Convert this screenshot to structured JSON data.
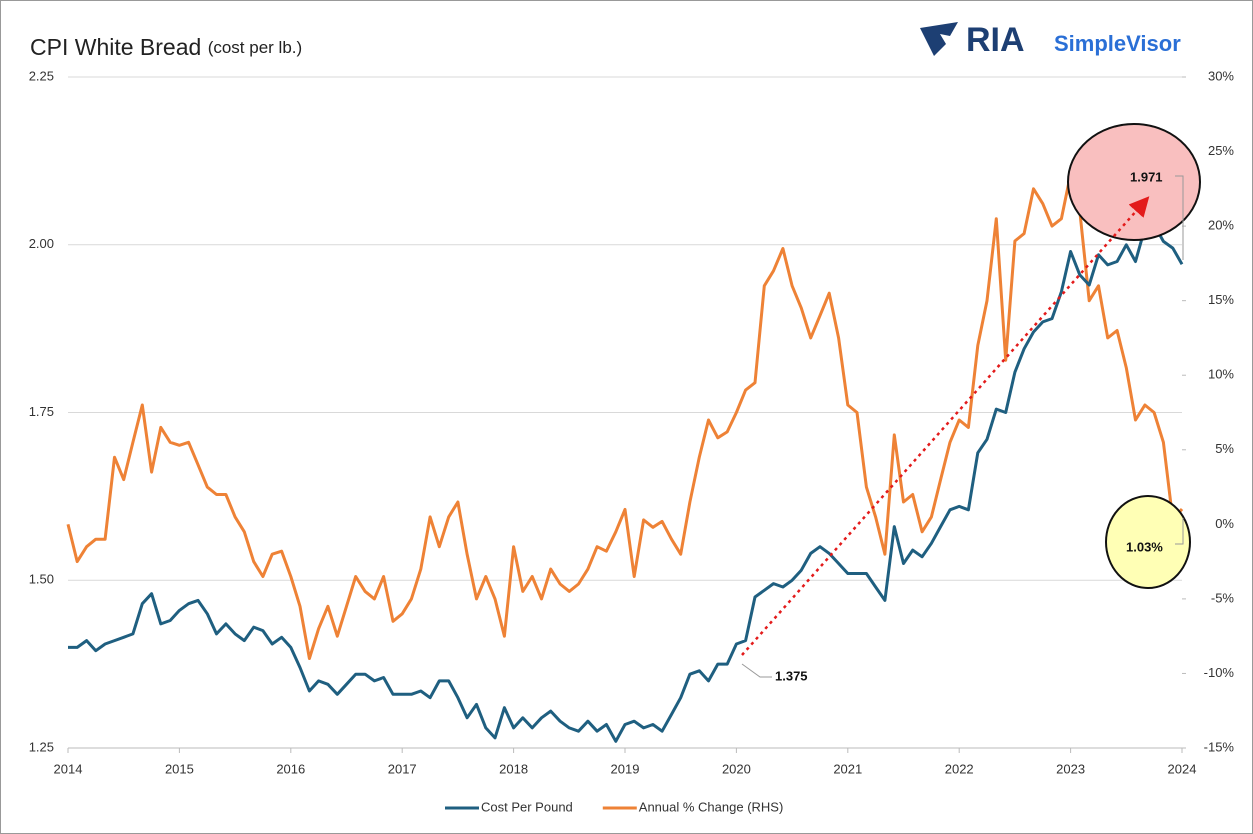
{
  "chart_data": {
    "type": "line",
    "title": "CPI White Bread",
    "subtitle": "(cost per lb.)",
    "brand": {
      "mark": "RIA",
      "name": "SimpleVisor"
    },
    "x": [
      2014,
      2014.083,
      2014.167,
      2014.25,
      2014.333,
      2014.417,
      2014.5,
      2014.583,
      2014.667,
      2014.75,
      2014.833,
      2014.917,
      2015,
      2015.083,
      2015.167,
      2015.25,
      2015.333,
      2015.417,
      2015.5,
      2015.583,
      2015.667,
      2015.75,
      2015.833,
      2015.917,
      2016,
      2016.083,
      2016.167,
      2016.25,
      2016.333,
      2016.417,
      2016.5,
      2016.583,
      2016.667,
      2016.75,
      2016.833,
      2016.917,
      2017,
      2017.083,
      2017.167,
      2017.25,
      2017.333,
      2017.417,
      2017.5,
      2017.583,
      2017.667,
      2017.75,
      2017.833,
      2017.917,
      2018,
      2018.083,
      2018.167,
      2018.25,
      2018.333,
      2018.417,
      2018.5,
      2018.583,
      2018.667,
      2018.75,
      2018.833,
      2018.917,
      2019,
      2019.083,
      2019.167,
      2019.25,
      2019.333,
      2019.417,
      2019.5,
      2019.583,
      2019.667,
      2019.75,
      2019.833,
      2019.917,
      2020,
      2020.083,
      2020.167,
      2020.25,
      2020.333,
      2020.417,
      2020.5,
      2020.583,
      2020.667,
      2020.75,
      2020.833,
      2020.917,
      2021,
      2021.083,
      2021.167,
      2021.25,
      2021.333,
      2021.417,
      2021.5,
      2021.583,
      2021.667,
      2021.75,
      2021.833,
      2021.917,
      2022,
      2022.083,
      2022.167,
      2022.25,
      2022.333,
      2022.417,
      2022.5,
      2022.583,
      2022.667,
      2022.75,
      2022.833,
      2022.917,
      2023,
      2023.083,
      2023.167,
      2023.25,
      2023.333,
      2023.417,
      2023.5,
      2023.583,
      2023.667,
      2023.75,
      2023.833,
      2023.917,
      2024
    ],
    "series": [
      {
        "name": "Cost Per Pound",
        "color": "#1f5f80",
        "values": [
          1.4,
          1.4,
          1.41,
          1.395,
          1.405,
          1.41,
          1.415,
          1.42,
          1.465,
          1.48,
          1.435,
          1.44,
          1.455,
          1.465,
          1.47,
          1.45,
          1.42,
          1.435,
          1.42,
          1.41,
          1.43,
          1.425,
          1.405,
          1.415,
          1.4,
          1.37,
          1.335,
          1.35,
          1.345,
          1.33,
          1.345,
          1.36,
          1.36,
          1.35,
          1.355,
          1.33,
          1.33,
          1.33,
          1.335,
          1.325,
          1.35,
          1.35,
          1.325,
          1.295,
          1.315,
          1.28,
          1.265,
          1.31,
          1.28,
          1.295,
          1.28,
          1.295,
          1.305,
          1.29,
          1.28,
          1.275,
          1.29,
          1.275,
          1.285,
          1.26,
          1.285,
          1.29,
          1.28,
          1.285,
          1.275,
          1.3,
          1.325,
          1.36,
          1.365,
          1.35,
          1.375,
          1.375,
          1.405,
          1.41,
          1.475,
          1.485,
          1.495,
          1.49,
          1.5,
          1.515,
          1.54,
          1.55,
          1.54,
          1.525,
          1.51,
          1.51,
          1.51,
          1.49,
          1.47,
          1.58,
          1.525,
          1.545,
          1.535,
          1.555,
          1.58,
          1.605,
          1.61,
          1.605,
          1.69,
          1.71,
          1.755,
          1.75,
          1.81,
          1.845,
          1.87,
          1.885,
          1.89,
          1.93,
          1.99,
          1.955,
          1.94,
          1.985,
          1.97,
          1.975,
          2.0,
          1.975,
          2.025,
          2.03,
          2.005,
          1.995,
          1.971
        ]
      },
      {
        "name": "Annual % Change (RHS)",
        "color": "#ee8236",
        "axis": "y2",
        "values": [
          0,
          -2.5,
          -1.5,
          -1,
          -1,
          4.5,
          3,
          5.5,
          8,
          3.5,
          6.5,
          5.5,
          5.3,
          5.5,
          4,
          2.5,
          2,
          2,
          0.5,
          -0.5,
          -2.5,
          -3.5,
          -2,
          -1.8,
          -3.5,
          -5.5,
          -9,
          -7,
          -5.5,
          -7.5,
          -5.5,
          -3.5,
          -4.5,
          -5,
          -3.5,
          -6.5,
          -6,
          -5,
          -3,
          0.5,
          -1.5,
          0.5,
          1.5,
          -2,
          -5,
          -3.5,
          -5,
          -7.5,
          -1.5,
          -4.5,
          -3.5,
          -5,
          -3,
          -4,
          -4.5,
          -4,
          -3,
          -1.5,
          -1.8,
          -0.5,
          1,
          -3.5,
          0.3,
          -0.2,
          0.2,
          -1,
          -2,
          1.5,
          4.5,
          7,
          5.8,
          6.2,
          7.5,
          9,
          9.5,
          16,
          17,
          18.5,
          16,
          14.5,
          12.5,
          14,
          15.5,
          12.5,
          8,
          7.5,
          2.5,
          0.5,
          -2,
          6,
          1.5,
          2,
          -0.5,
          0.5,
          3,
          5.5,
          7,
          6.5,
          12,
          15,
          20.5,
          11,
          19,
          19.5,
          22.5,
          21.5,
          20,
          20.5,
          23.5,
          21,
          15,
          16,
          12.5,
          13,
          10.5,
          7,
          8,
          7.5,
          5.5,
          0.3,
          1.03
        ]
      }
    ],
    "xlim": [
      2014,
      2024
    ],
    "xticks": [
      2014,
      2015,
      2016,
      2017,
      2018,
      2019,
      2020,
      2021,
      2022,
      2023,
      2024
    ],
    "ylim": [
      1.25,
      2.25
    ],
    "yticks": [
      1.25,
      {
        "value": 1.5,
        "label": "1.50"
      },
      1.75,
      {
        "value": 2,
        "label": "2.00"
      },
      2.25
    ],
    "y2lim": [
      -15,
      30
    ],
    "y2ticks": [
      {
        "value": -15,
        "label": "-15%"
      },
      {
        "value": -10,
        "label": "-10%"
      },
      {
        "value": -5,
        "label": "-5%"
      },
      {
        "value": 0,
        "label": "0%"
      },
      {
        "value": 5,
        "label": "5%"
      },
      {
        "value": 10,
        "label": "10%"
      },
      {
        "value": 15,
        "label": "15%"
      },
      {
        "value": 20,
        "label": "20%"
      },
      {
        "value": 25,
        "label": "25%"
      },
      {
        "value": 30,
        "label": "30%"
      }
    ],
    "grid": true,
    "legend": "bottom",
    "annotations": [
      "1.375",
      "1.971",
      "1.03%"
    ]
  }
}
